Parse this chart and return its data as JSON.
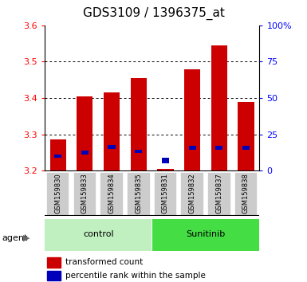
{
  "title": "GDS3109 / 1396375_at",
  "samples": [
    "GSM159830",
    "GSM159833",
    "GSM159834",
    "GSM159835",
    "GSM159831",
    "GSM159832",
    "GSM159837",
    "GSM159838"
  ],
  "red_values": [
    3.285,
    3.405,
    3.415,
    3.455,
    3.205,
    3.48,
    3.545,
    3.39
  ],
  "blue_values": [
    3.235,
    3.245,
    3.26,
    3.248,
    3.22,
    3.258,
    3.258,
    3.258
  ],
  "blue_heights": [
    0.01,
    0.01,
    0.01,
    0.01,
    0.016,
    0.01,
    0.01,
    0.01
  ],
  "ymin": 3.2,
  "ymax": 3.6,
  "yticks": [
    3.2,
    3.3,
    3.4,
    3.5,
    3.6
  ],
  "right_yticks": [
    0,
    25,
    50,
    75,
    100
  ],
  "right_yticklabels": [
    "0",
    "25",
    "50",
    "75",
    "100%"
  ],
  "groups": [
    {
      "label": "control",
      "indices": [
        0,
        1,
        2,
        3
      ],
      "color": "#c0f0c0"
    },
    {
      "label": "Sunitinib",
      "indices": [
        4,
        5,
        6,
        7
      ],
      "color": "#44dd44"
    }
  ],
  "bar_color": "#cc0000",
  "blue_color": "#0000bb",
  "bar_width": 0.6,
  "agent_label": "agent",
  "legend_red": "transformed count",
  "legend_blue": "percentile rank within the sample",
  "title_fontsize": 11,
  "tick_fontsize": 8,
  "label_fontsize": 8
}
